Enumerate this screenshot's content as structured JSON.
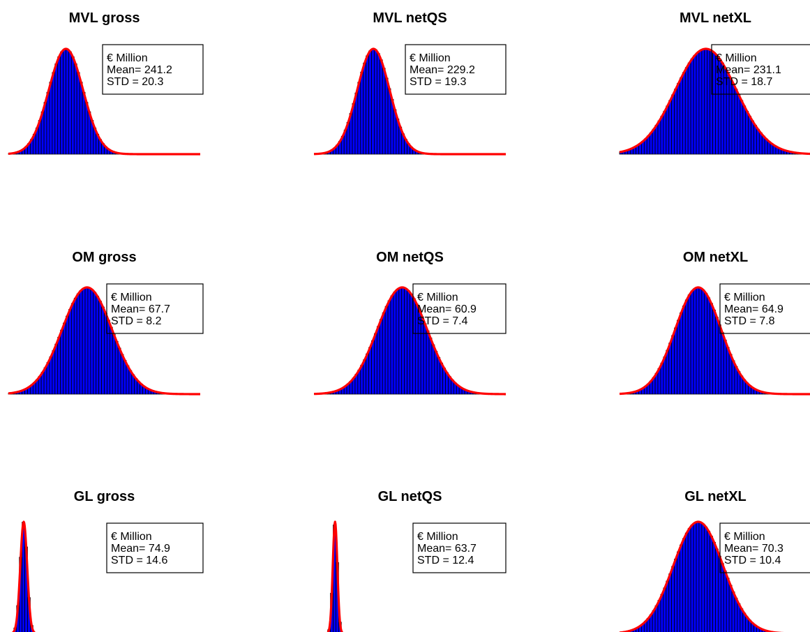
{
  "figure": {
    "unit_label": "€ Million",
    "mean_prefix": "Mean= ",
    "std_prefix": "STD = ",
    "colors": {
      "bars": "#0000ff",
      "bar_edge": "#000000",
      "curve": "#ff0000",
      "box": "#000000"
    }
  },
  "chart_data": [
    {
      "type": "bar",
      "title": "MVL gross",
      "mean": "241.2",
      "std": "20.3",
      "shape": {
        "center": 0.3,
        "sigma": 0.09,
        "skew": 1.0,
        "height": 1.0
      }
    },
    {
      "type": "bar",
      "title": "MVL netQS",
      "mean": "229.2",
      "std": "19.3",
      "shape": {
        "center": 0.31,
        "sigma": 0.085,
        "skew": 1.0,
        "height": 1.0
      }
    },
    {
      "type": "bar",
      "title": "MVL netXL",
      "mean": "231.1",
      "std": "18.7",
      "shape": {
        "center": 0.45,
        "sigma": 0.16,
        "skew": 1.0,
        "height": 1.0
      }
    },
    {
      "type": "bar",
      "title": "OM gross",
      "mean": "67.7",
      "std": "8.2",
      "shape": {
        "center": 0.41,
        "sigma": 0.13,
        "skew": 1.0,
        "height": 1.0
      }
    },
    {
      "type": "bar",
      "title": "OM netQS",
      "mean": "60.9",
      "std": "7.4",
      "shape": {
        "center": 0.46,
        "sigma": 0.13,
        "skew": 1.0,
        "height": 1.0
      }
    },
    {
      "type": "bar",
      "title": "OM netXL",
      "mean": "64.9",
      "std": "7.8",
      "shape": {
        "center": 0.41,
        "sigma": 0.12,
        "skew": 1.0,
        "height": 1.0
      }
    },
    {
      "type": "bar",
      "title": "GL gross",
      "mean": "74.9",
      "std": "14.6",
      "shape": {
        "center": 0.08,
        "sigma": 0.018,
        "skew": 1.0,
        "height": 1.0
      }
    },
    {
      "type": "bar",
      "title": "GL netQS",
      "mean": "63.7",
      "std": "12.4",
      "shape": {
        "center": 0.11,
        "sigma": 0.012,
        "skew": 1.0,
        "height": 1.0
      }
    },
    {
      "type": "bar",
      "title": "GL netXL",
      "mean": "70.3",
      "std": "10.4",
      "shape": {
        "center": 0.41,
        "sigma": 0.13,
        "skew": 1.0,
        "height": 1.0
      }
    }
  ]
}
